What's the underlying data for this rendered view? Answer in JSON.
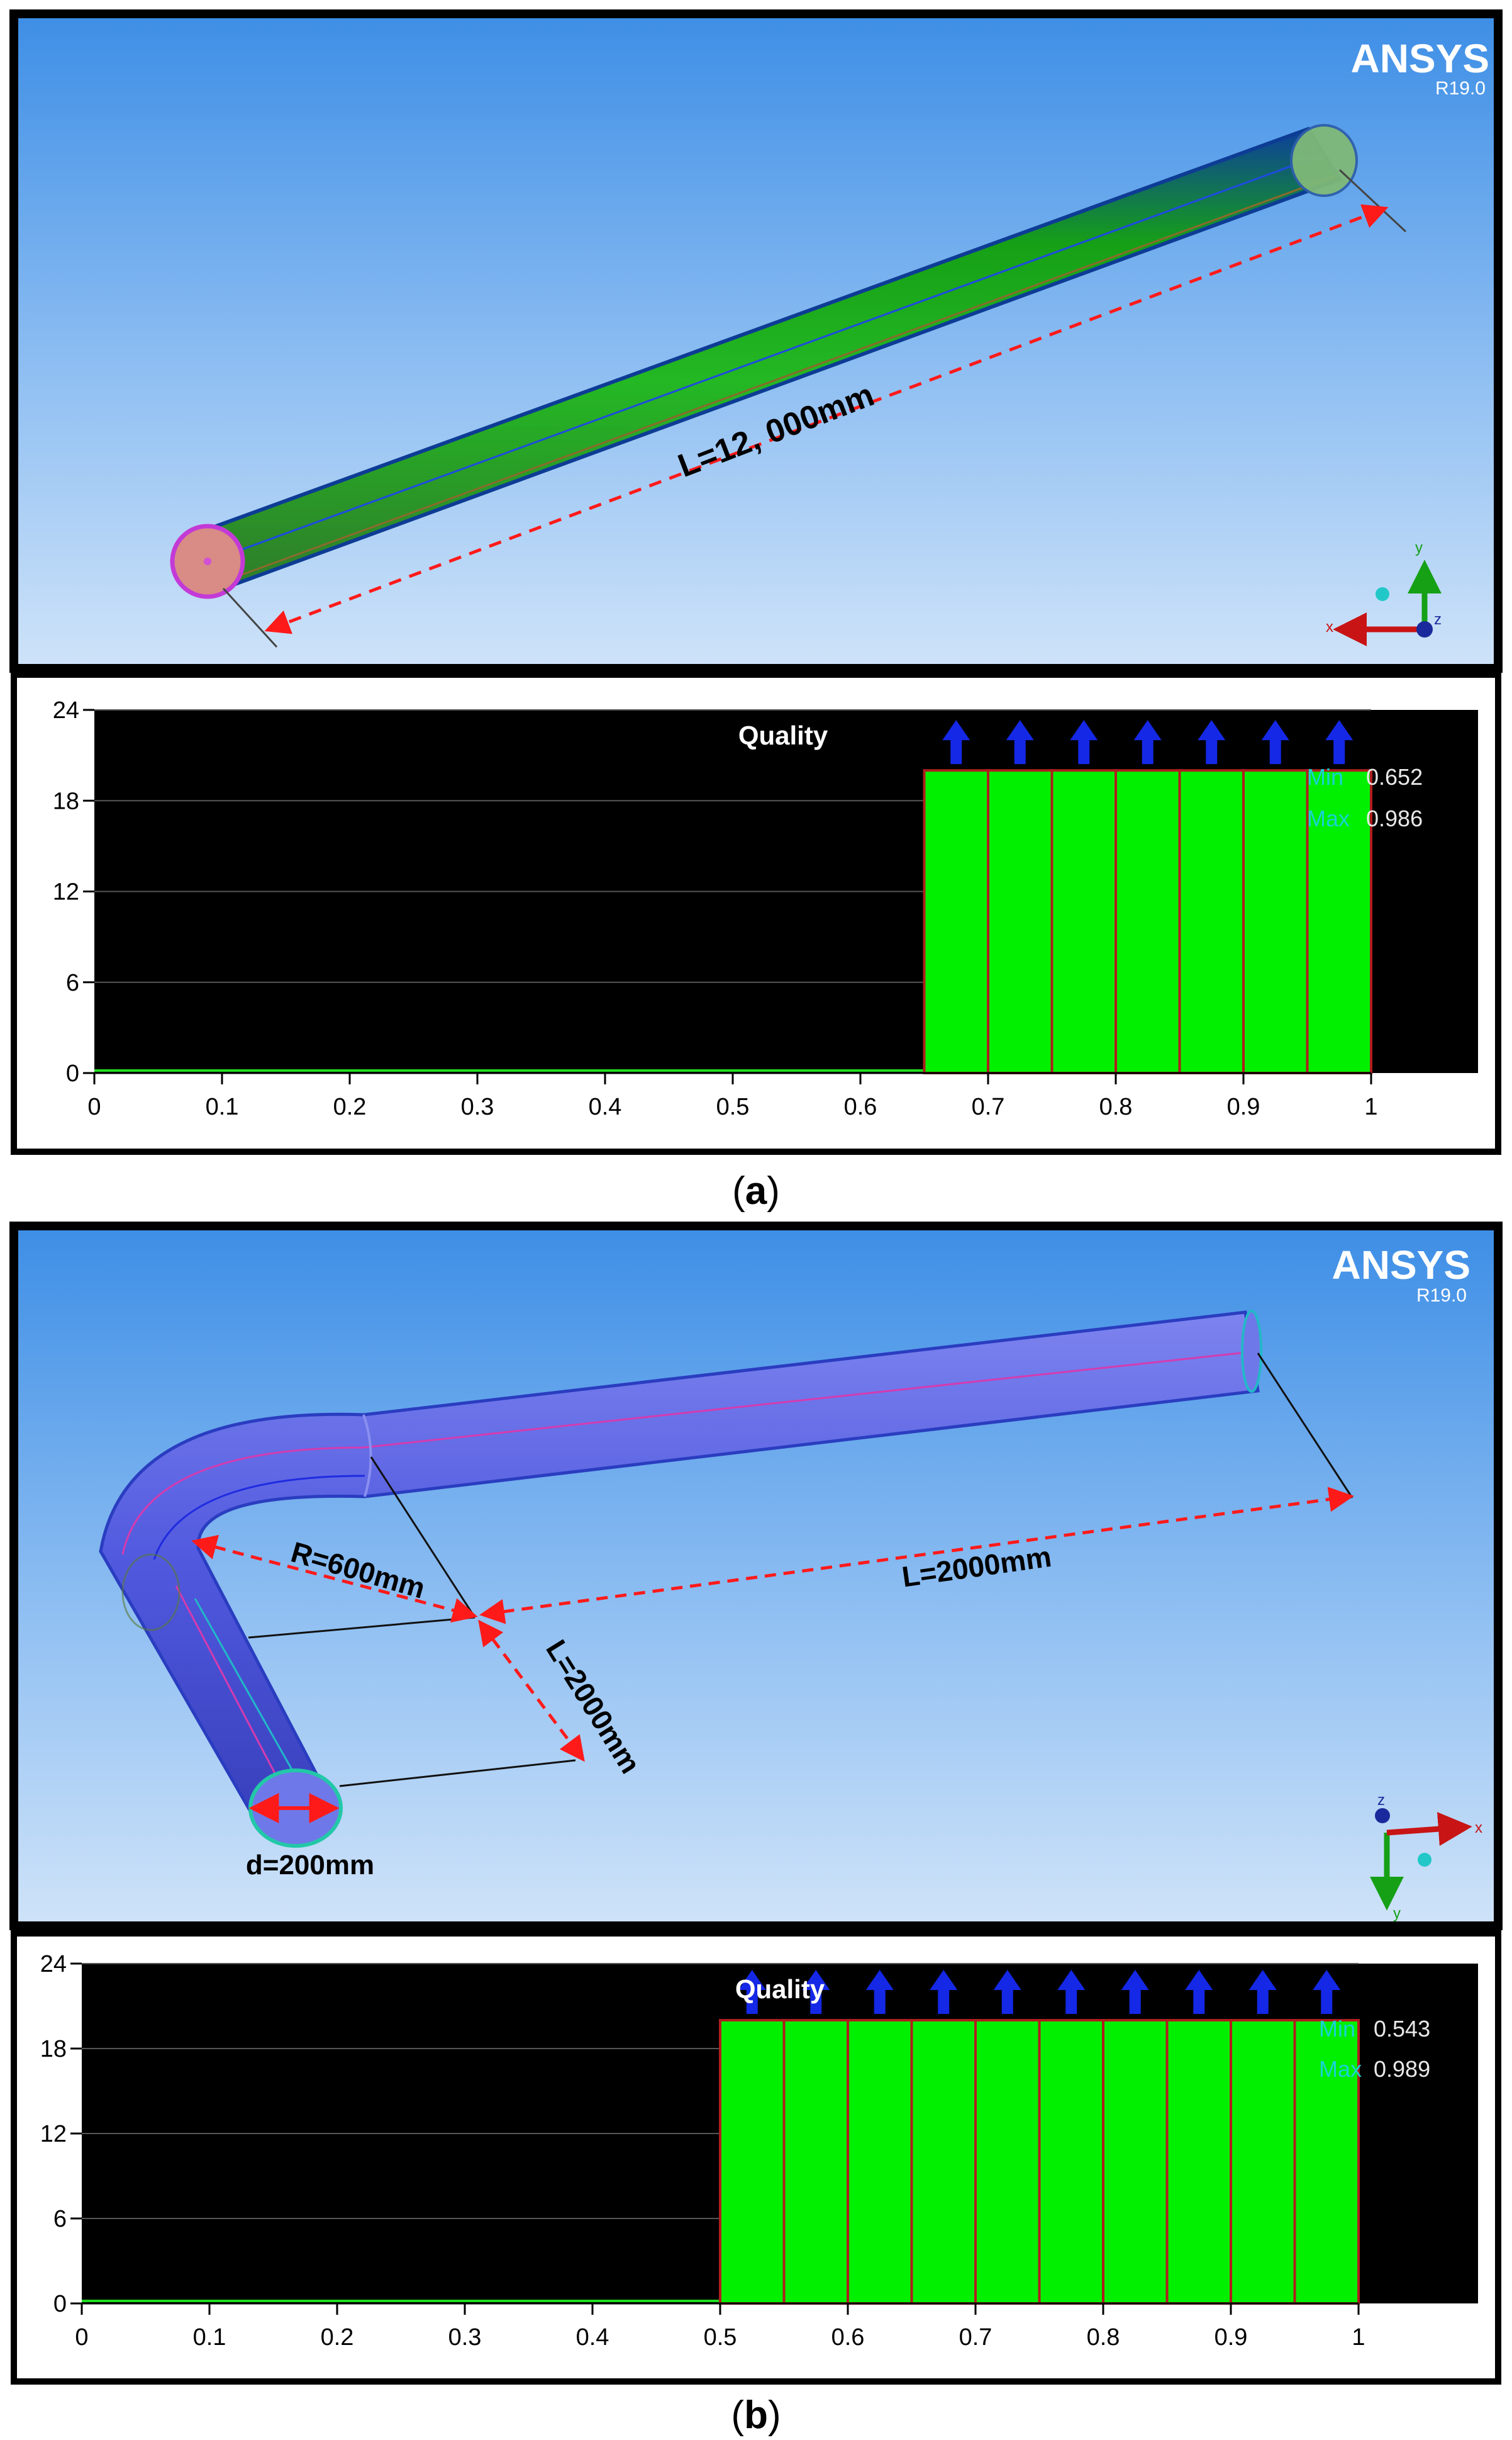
{
  "panels": [
    {
      "id": "a",
      "caption": "a",
      "brand": {
        "name": "ANSYS",
        "version": "R19.0"
      },
      "annotations": {
        "length": "L=12, 000mm"
      },
      "axis_triad": {
        "x": "x",
        "y": "y",
        "z": "z"
      },
      "histogram": {
        "title": "Quality",
        "min_label": "Min",
        "min_value": "0.652",
        "max_label": "Max",
        "max_value": "0.986",
        "x_ticks": [
          "0",
          "0.1",
          "0.2",
          "0.3",
          "0.4",
          "0.5",
          "0.6",
          "0.7",
          "0.8",
          "0.9",
          "1"
        ],
        "y_ticks": [
          "0",
          "6",
          "12",
          "18",
          "24"
        ]
      }
    },
    {
      "id": "b",
      "caption": "b",
      "brand": {
        "name": "ANSYS",
        "version": "R19.0"
      },
      "annotations": {
        "radius": "R=600mm",
        "length_long": "L=2000mm",
        "length_short": "L=2000mm",
        "diameter": "d=200mm"
      },
      "axis_triad": {
        "x": "x",
        "y": "y",
        "z": "z"
      },
      "histogram": {
        "title": "Quality",
        "min_label": "Min",
        "min_value": "0.543",
        "max_label": "Max",
        "max_value": "0.989",
        "x_ticks": [
          "0",
          "0.1",
          "0.2",
          "0.3",
          "0.4",
          "0.5",
          "0.6",
          "0.7",
          "0.8",
          "0.9",
          "1"
        ],
        "y_ticks": [
          "0",
          "6",
          "12",
          "18",
          "24"
        ]
      }
    }
  ],
  "chart_data": [
    {
      "type": "bar",
      "title": "Quality",
      "xlim": [
        0,
        1
      ],
      "ylim": [
        0,
        24
      ],
      "bins": [
        {
          "x0": 0.65,
          "x1": 0.7,
          "value": 20
        },
        {
          "x0": 0.7,
          "x1": 0.75,
          "value": 20
        },
        {
          "x0": 0.75,
          "x1": 0.8,
          "value": 20
        },
        {
          "x0": 0.8,
          "x1": 0.85,
          "value": 20
        },
        {
          "x0": 0.85,
          "x1": 0.9,
          "value": 20
        },
        {
          "x0": 0.9,
          "x1": 0.95,
          "value": 20
        },
        {
          "x0": 0.95,
          "x1": 1.0,
          "value": 20
        }
      ]
    },
    {
      "type": "bar",
      "title": "Quality",
      "xlim": [
        0,
        1
      ],
      "ylim": [
        0,
        24
      ],
      "bins": [
        {
          "x0": 0.5,
          "x1": 0.55,
          "value": 20
        },
        {
          "x0": 0.55,
          "x1": 0.6,
          "value": 20
        },
        {
          "x0": 0.6,
          "x1": 0.65,
          "value": 20
        },
        {
          "x0": 0.65,
          "x1": 0.7,
          "value": 20
        },
        {
          "x0": 0.7,
          "x1": 0.75,
          "value": 20
        },
        {
          "x0": 0.75,
          "x1": 0.8,
          "value": 20
        },
        {
          "x0": 0.8,
          "x1": 0.85,
          "value": 20
        },
        {
          "x0": 0.85,
          "x1": 0.9,
          "value": 20
        },
        {
          "x0": 0.9,
          "x1": 0.95,
          "value": 20
        },
        {
          "x0": 0.95,
          "x1": 1.0,
          "value": 20
        }
      ]
    }
  ]
}
